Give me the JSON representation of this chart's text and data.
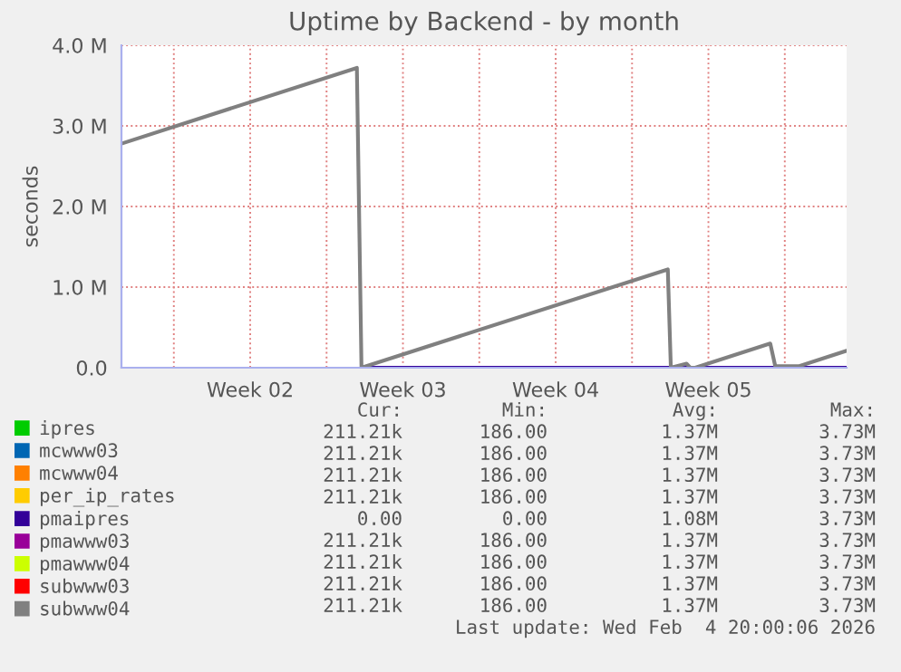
{
  "chart_data": {
    "type": "line",
    "title": "Uptime by Backend - by month",
    "ylabel": "seconds",
    "x": [
      "2026-01-02T14:24",
      "2026-01-13T09:20",
      "2026-01-13T14:24",
      "2026-01-27T15:20",
      "2026-01-27T18:40",
      "2026-01-28T12:00",
      "2026-01-28T16:00",
      "2026-01-28T21:30",
      "2026-02-01T08:00",
      "2026-02-01T13:30",
      "2026-02-02T16:00",
      "2026-02-04T20:00"
    ],
    "xlim": [
      "2026-01-02T14:24",
      "2026-02-04T20:00"
    ],
    "xticks": [
      {
        "value": "2026-01-05",
        "label": null
      },
      {
        "value": "2026-01-08T12:00",
        "label": "Week 02"
      },
      {
        "value": "2026-01-12",
        "label": null
      },
      {
        "value": "2026-01-15T12:00",
        "label": "Week 03"
      },
      {
        "value": "2026-01-19",
        "label": null
      },
      {
        "value": "2026-01-22T12:00",
        "label": "Week 04"
      },
      {
        "value": "2026-01-26",
        "label": null
      },
      {
        "value": "2026-01-29T12:00",
        "label": "Week 05"
      },
      {
        "value": "2026-02-02",
        "label": null
      }
    ],
    "ylim": [
      0,
      4000000
    ],
    "yticks": [
      {
        "value": 0,
        "label": "0.0"
      },
      {
        "value": 1000000,
        "label": "1.0 M"
      },
      {
        "value": 2000000,
        "label": "2.0 M"
      },
      {
        "value": 3000000,
        "label": "3.0 M"
      },
      {
        "value": 4000000,
        "label": "4.0 M"
      }
    ],
    "series": [
      {
        "name": "ipres",
        "color": "#00cc00",
        "values": [
          null,
          null,
          null,
          null,
          null,
          null,
          null,
          null,
          null,
          null,
          null,
          null
        ]
      },
      {
        "name": "mcwww03",
        "color": "#0066b3",
        "values": [
          null,
          null,
          null,
          null,
          null,
          null,
          null,
          null,
          null,
          null,
          null,
          null
        ]
      },
      {
        "name": "mcwww04",
        "color": "#ff8000",
        "values": [
          null,
          null,
          null,
          null,
          null,
          null,
          null,
          null,
          null,
          null,
          null,
          null
        ]
      },
      {
        "name": "per_ip_rates",
        "color": "#ffcc00",
        "values": [
          null,
          null,
          null,
          null,
          null,
          null,
          null,
          null,
          null,
          null,
          null,
          null
        ]
      },
      {
        "name": "pmaipres",
        "color": "#330099",
        "values": [
          null,
          null,
          0,
          0,
          0,
          0,
          0,
          0,
          0,
          0,
          0,
          0
        ]
      },
      {
        "name": "pmawww03",
        "color": "#990099",
        "values": [
          null,
          null,
          null,
          null,
          null,
          null,
          null,
          null,
          null,
          null,
          null,
          null
        ]
      },
      {
        "name": "pmawww04",
        "color": "#ccff00",
        "values": [
          null,
          null,
          null,
          null,
          null,
          null,
          null,
          null,
          null,
          null,
          null,
          null
        ]
      },
      {
        "name": "subwww03",
        "color": "#ff0000",
        "values": [
          null,
          null,
          null,
          null,
          null,
          null,
          null,
          null,
          null,
          null,
          null,
          null
        ]
      },
      {
        "name": "subwww04",
        "color": "#808080",
        "values": [
          2780000,
          3720000,
          0,
          1220000,
          0,
          50000,
          0,
          0,
          300000,
          20000,
          20000,
          210000
        ]
      }
    ],
    "grid": true,
    "legend": "bottom",
    "marker": "none",
    "line_style": "solid",
    "annotations": [
      "Cur:",
      "Min:",
      "Avg:",
      "Max:",
      "211.21k",
      "186.00",
      "1.37M",
      "3.73M",
      "211.21k",
      "186.00",
      "1.37M",
      "3.73M",
      "211.21k",
      "186.00",
      "1.37M",
      "3.73M",
      "211.21k",
      "186.00",
      "1.37M",
      "3.73M",
      "0.00",
      "0.00",
      "1.08M",
      "3.73M",
      "211.21k",
      "186.00",
      "1.37M",
      "3.73M",
      "211.21k",
      "186.00",
      "1.37M",
      "3.73M",
      "211.21k",
      "186.00",
      "1.37M",
      "3.73M",
      "211.21k",
      "186.00",
      "1.37M",
      "3.73M",
      "Last update: Wed Feb  4 20:00:06 2026"
    ]
  }
}
